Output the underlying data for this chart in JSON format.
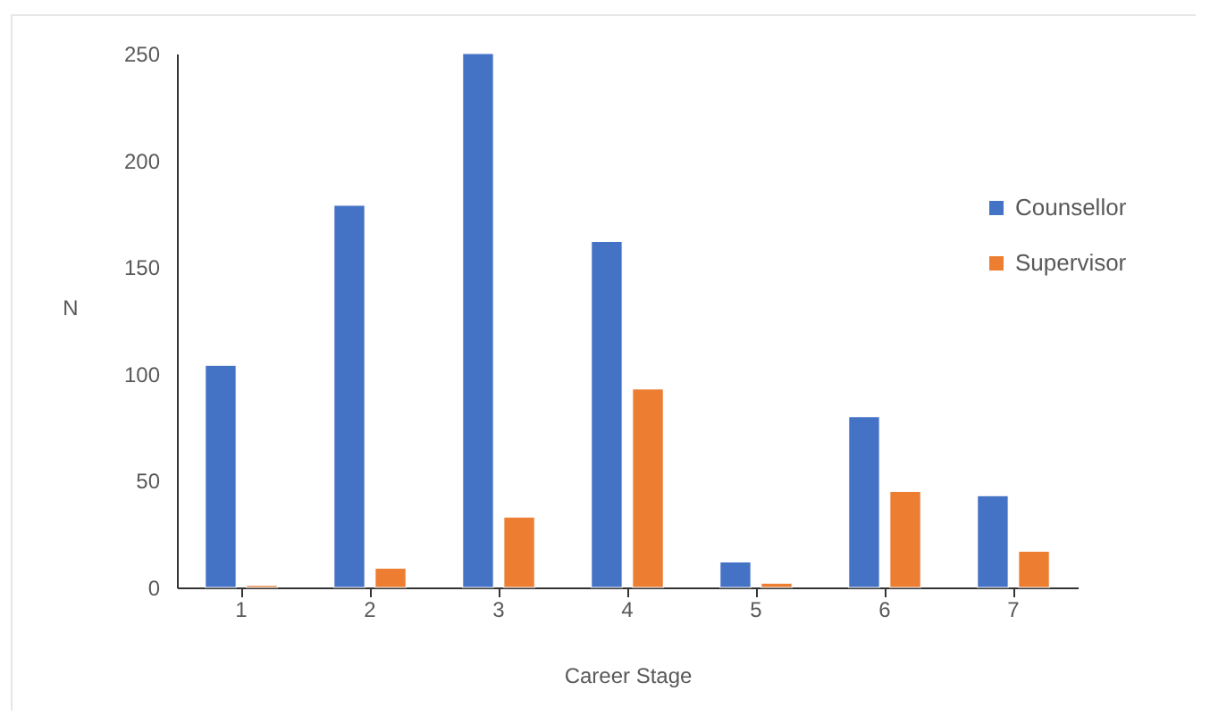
{
  "chart_data": {
    "type": "bar",
    "xlabel": "Career Stage",
    "ylabel": "N",
    "categories": [
      "1",
      "2",
      "3",
      "4",
      "5",
      "6",
      "7"
    ],
    "series": [
      {
        "name": "Counsellor",
        "color": "#4472c4",
        "values": [
          104,
          179,
          250,
          162,
          12,
          80,
          43
        ]
      },
      {
        "name": "Supervisor",
        "color": "#ed7d31",
        "values": [
          1,
          9,
          33,
          93,
          2,
          45,
          17
        ]
      }
    ],
    "ylim": [
      0,
      250
    ],
    "yticks": [
      0,
      50,
      100,
      150,
      200,
      250
    ],
    "grid": false,
    "legend": "right"
  }
}
